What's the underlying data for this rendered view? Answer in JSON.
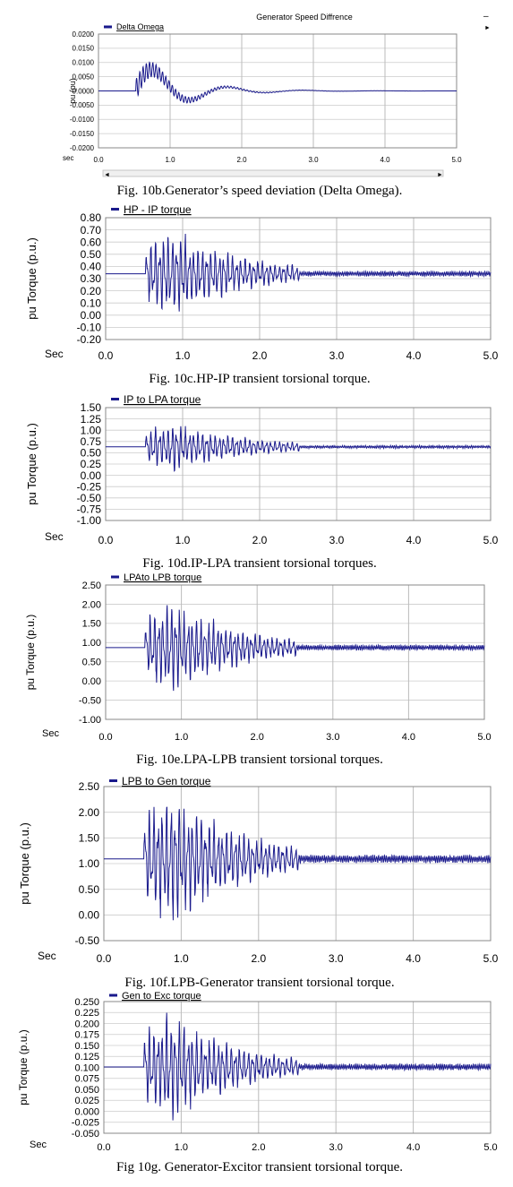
{
  "chart_data": [
    {
      "type": "line",
      "title": "Generator Speed Diffrence",
      "legend": "Delta Omega",
      "legend_placement": "top-left",
      "ylabel": "pu (pu)",
      "xlabel": "sec",
      "caption": "Fig. 10b.Generator’s speed deviation (Delta Omega).",
      "xlim": [
        0,
        5
      ],
      "ylim": [
        -0.02,
        0.02
      ],
      "grid": true,
      "steady_value": 0.0,
      "fault_time": 0.52,
      "peak_amplitude": 0.011,
      "x_ticks": [
        "0.0",
        "1.0",
        "2.0",
        "3.0",
        "4.0",
        "5.0"
      ],
      "y_ticks": [
        "0.0200",
        "0.0150",
        "0.0100",
        "0.0050",
        "0.0000",
        "-0.0050",
        "-0.0100",
        "-0.0150",
        "-0.0200"
      ],
      "series_color": "#1a1a8c"
    },
    {
      "type": "line",
      "legend": "HP - IP torque",
      "legend_placement": "top-left",
      "ylabel": "pu Torque (p.u.)",
      "xlabel": "Sec",
      "caption": "Fig. 10c.HP-IP transient torsional torque.",
      "xlim": [
        0,
        5
      ],
      "ylim": [
        -0.2,
        0.8
      ],
      "grid": true,
      "steady_value": 0.34,
      "fault_time": 0.52,
      "peak_amplitude": 0.3,
      "x_ticks": [
        "0.0",
        "1.0",
        "2.0",
        "3.0",
        "4.0",
        "5.0"
      ],
      "y_ticks": [
        "0.80",
        "0.70",
        "0.60",
        "0.50",
        "0.40",
        "0.30",
        "0.20",
        "0.10",
        "0.00",
        "-0.10",
        "-0.20"
      ],
      "series_color": "#1a1a8c"
    },
    {
      "type": "line",
      "legend": "IP to LPA torque",
      "legend_placement": "top-left",
      "ylabel": "pu Torque (p.u.)",
      "xlabel": "Sec",
      "caption": "Fig. 10d.IP-LPA transient torsional torques.",
      "xlim": [
        0,
        5
      ],
      "ylim": [
        -1.0,
        1.5
      ],
      "grid": true,
      "steady_value": 0.63,
      "fault_time": 0.52,
      "peak_amplitude": 0.45,
      "x_ticks": [
        "0.0",
        "1.0",
        "2.0",
        "3.0",
        "4.0",
        "5.0"
      ],
      "y_ticks": [
        "1.50",
        "1.25",
        "1.00",
        "0.75",
        "0.50",
        "0.25",
        "0.00",
        "-0.25",
        "-0.50",
        "-0.75",
        "-1.00"
      ],
      "series_color": "#1a1a8c"
    },
    {
      "type": "line",
      "legend": "LPAto LPB torque",
      "legend_placement": "top-left",
      "ylabel": "pu Torque (p.u.)",
      "xlabel": "Sec",
      "caption": "Fig. 10e.LPA-LPB transient torsional torques.",
      "xlim": [
        0,
        5
      ],
      "ylim": [
        -1.0,
        2.5
      ],
      "grid": true,
      "steady_value": 0.87,
      "fault_time": 0.52,
      "peak_amplitude": 1.0,
      "x_ticks": [
        "0.0",
        "1.0",
        "2.0",
        "3.0",
        "4.0",
        "5.0"
      ],
      "y_ticks": [
        "2.50",
        "2.00",
        "1.50",
        "1.00",
        "0.50",
        "0.00",
        "-0.50",
        "-1.00"
      ],
      "series_color": "#1a1a8c"
    },
    {
      "type": "line",
      "legend": "LPB to Gen  torque",
      "legend_placement": "top-left",
      "ylabel": "pu Torque (p.u.)",
      "xlabel": "Sec",
      "caption": "Fig. 10f.LPB-Generator transient torsional torque.",
      "xlim": [
        0,
        5
      ],
      "ylim": [
        -0.5,
        2.5
      ],
      "grid": true,
      "steady_value": 1.09,
      "fault_time": 0.52,
      "peak_amplitude": 1.1,
      "x_ticks": [
        "0.0",
        "1.0",
        "2.0",
        "3.0",
        "4.0",
        "5.0"
      ],
      "y_ticks": [
        "2.50",
        "2.00",
        "1.50",
        "1.00",
        "0.50",
        "0.00",
        "-0.50"
      ],
      "series_color": "#1a1a8c"
    },
    {
      "type": "line",
      "legend": "Gen to Exc torque",
      "legend_placement": "top-left",
      "ylabel": "pu Torque (p.u.)",
      "xlabel": "Sec",
      "caption": "Fig  10g.  Generator-Excitor transient torsional torque.",
      "xlim": [
        0,
        5
      ],
      "ylim": [
        -0.05,
        0.25
      ],
      "grid": true,
      "steady_value": 0.101,
      "fault_time": 0.52,
      "peak_amplitude": 0.1,
      "x_ticks": [
        "0.0",
        "1.0",
        "2.0",
        "3.0",
        "4.0",
        "5.0"
      ],
      "y_ticks": [
        "0.250",
        "0.225",
        "0.200",
        "0.175",
        "0.150",
        "0.125",
        "0.100",
        "0.075",
        "0.050",
        "0.025",
        "0.000",
        "-0.025",
        "-0.050"
      ],
      "series_color": "#1a1a8c"
    }
  ]
}
